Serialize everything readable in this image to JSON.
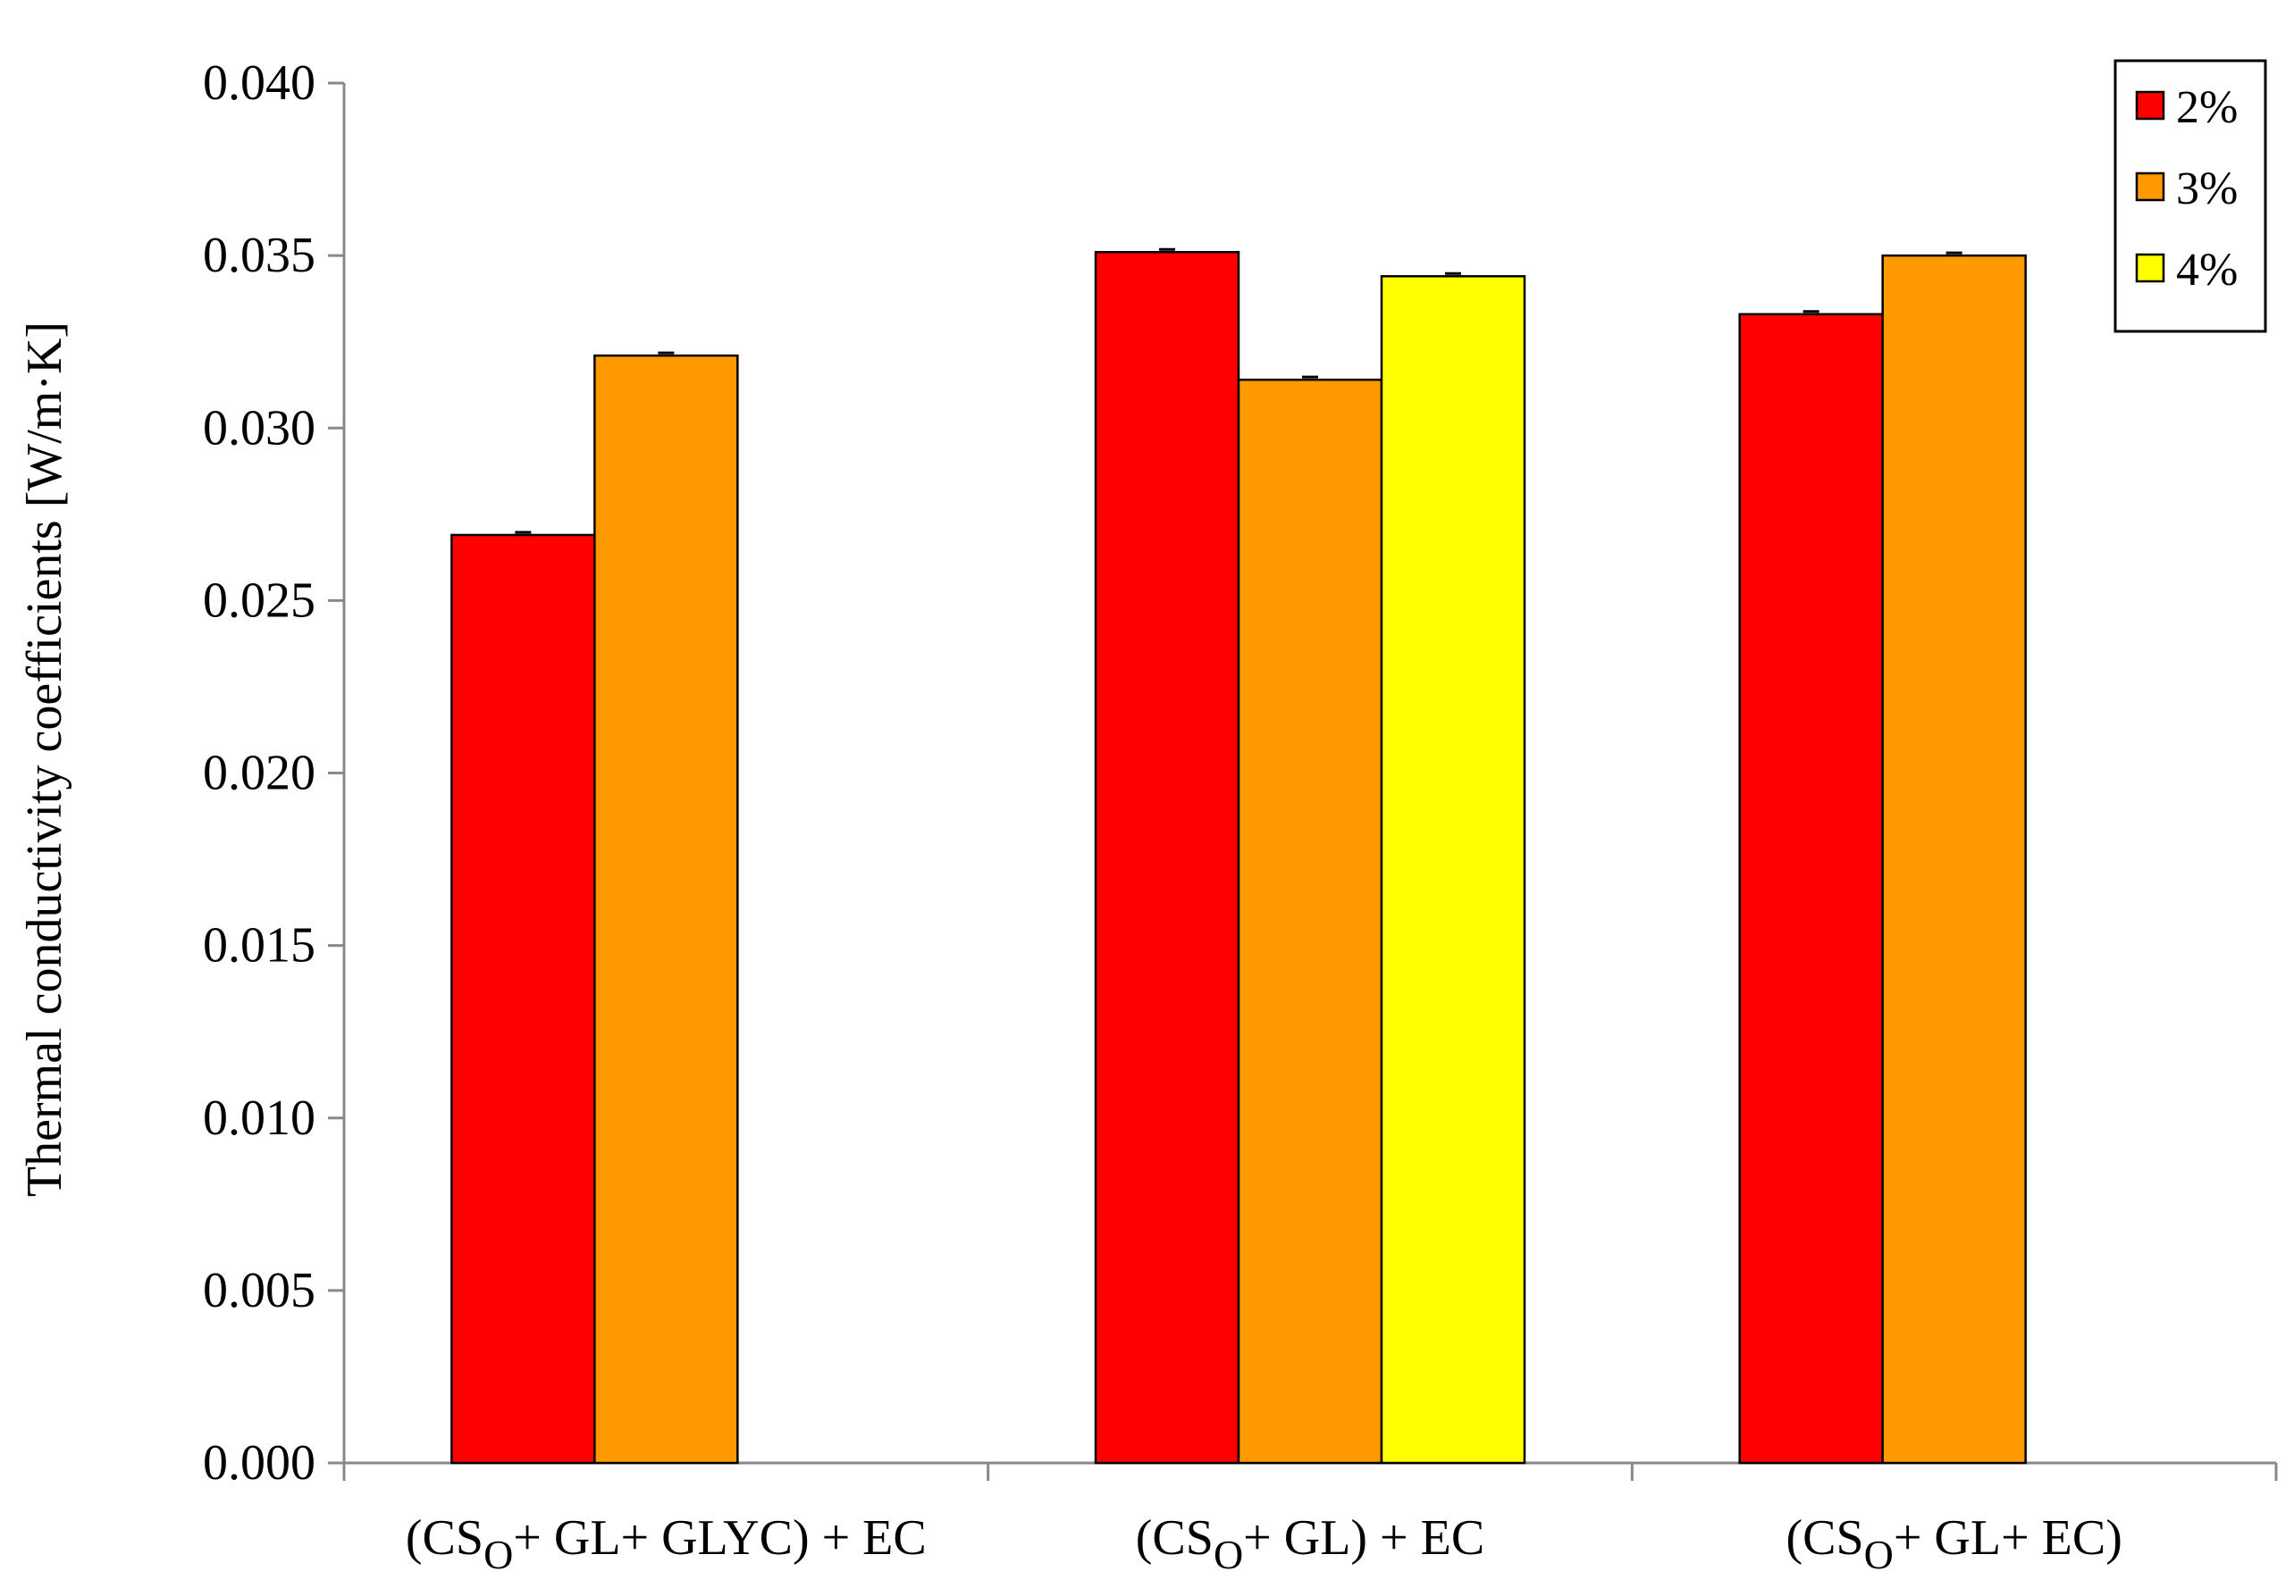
{
  "chart_data": {
    "type": "bar",
    "title": "",
    "xlabel": "",
    "ylabel": "Thermal conductivity coefficients [W/m·K]",
    "ylim": [
      0,
      0.04
    ],
    "ytick_step": 0.005,
    "yticks": [
      "0.000",
      "0.005",
      "0.010",
      "0.015",
      "0.020",
      "0.025",
      "0.030",
      "0.035",
      "0.040"
    ],
    "categories": [
      {
        "pre": "(CS",
        "sub": "O",
        "post": "+ GL+ GLYC) + EC"
      },
      {
        "pre": "(CS",
        "sub": "O",
        "post": "+ GL) + EC"
      },
      {
        "pre": "(CS",
        "sub": "O",
        "post": "+ GL+ EC)"
      }
    ],
    "series": [
      {
        "name": "2%",
        "color": "#ff0000",
        "values": [
          0.0269,
          0.0351,
          0.0333
        ]
      },
      {
        "name": "3%",
        "color": "#ff9900",
        "values": [
          0.0321,
          0.0314,
          0.035
        ]
      },
      {
        "name": "4%",
        "color": "#ffff00",
        "values": [
          null,
          0.0344,
          null
        ]
      }
    ],
    "grid": false,
    "legend_position": "top-right",
    "error_bars": true
  }
}
